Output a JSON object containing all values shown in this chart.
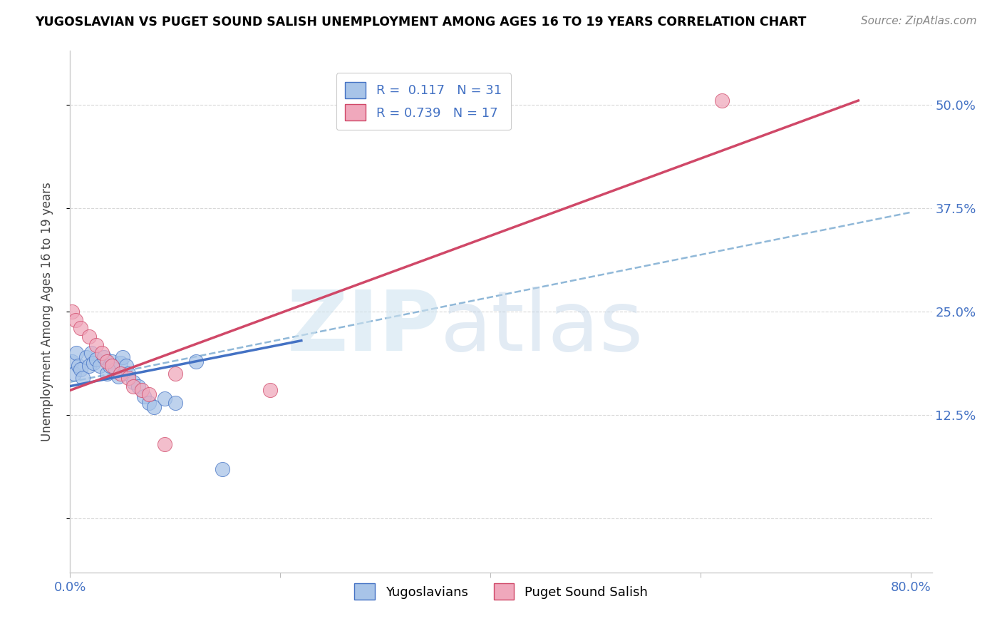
{
  "title": "YUGOSLAVIAN VS PUGET SOUND SALISH UNEMPLOYMENT AMONG AGES 16 TO 19 YEARS CORRELATION CHART",
  "source": "Source: ZipAtlas.com",
  "ylabel": "Unemployment Among Ages 16 to 19 years",
  "xlim": [
    0.0,
    0.82
  ],
  "ylim": [
    -0.065,
    0.565
  ],
  "ytick_vals": [
    0.0,
    0.125,
    0.25,
    0.375,
    0.5
  ],
  "ytick_labels_right": [
    "",
    "12.5%",
    "25.0%",
    "37.5%",
    "50.0%"
  ],
  "xtick_vals": [
    0.0,
    0.2,
    0.4,
    0.6,
    0.8
  ],
  "xtick_labels": [
    "0.0%",
    "",
    "",
    "",
    "80.0%"
  ],
  "blue_color": "#a8c4e8",
  "pink_color": "#f0a8bc",
  "blue_line_color": "#4472c4",
  "pink_line_color": "#d04868",
  "legend_blue_R": "0.117",
  "legend_blue_N": "31",
  "legend_pink_R": "0.739",
  "legend_pink_N": "17",
  "blue_scatter_x": [
    0.002,
    0.004,
    0.006,
    0.008,
    0.01,
    0.012,
    0.015,
    0.018,
    0.02,
    0.022,
    0.025,
    0.028,
    0.032,
    0.035,
    0.038,
    0.04,
    0.043,
    0.046,
    0.048,
    0.05,
    0.053,
    0.055,
    0.06,
    0.065,
    0.07,
    0.075,
    0.08,
    0.09,
    0.1,
    0.12,
    0.145
  ],
  "blue_scatter_y": [
    0.19,
    0.175,
    0.2,
    0.185,
    0.18,
    0.17,
    0.195,
    0.185,
    0.2,
    0.188,
    0.192,
    0.185,
    0.195,
    0.175,
    0.185,
    0.19,
    0.18,
    0.172,
    0.188,
    0.195,
    0.185,
    0.175,
    0.165,
    0.16,
    0.148,
    0.14,
    0.135,
    0.145,
    0.14,
    0.19,
    0.06
  ],
  "pink_scatter_x": [
    0.002,
    0.005,
    0.01,
    0.018,
    0.025,
    0.03,
    0.035,
    0.04,
    0.048,
    0.055,
    0.06,
    0.068,
    0.075,
    0.09,
    0.1,
    0.19,
    0.62
  ],
  "pink_scatter_y": [
    0.25,
    0.24,
    0.23,
    0.22,
    0.21,
    0.2,
    0.19,
    0.185,
    0.175,
    0.17,
    0.16,
    0.155,
    0.15,
    0.09,
    0.175,
    0.155,
    0.505
  ],
  "blue_trend_x": [
    0.0,
    0.22
  ],
  "blue_trend_y": [
    0.16,
    0.215
  ],
  "pink_trend_x": [
    0.0,
    0.75
  ],
  "pink_trend_y": [
    0.155,
    0.505
  ],
  "dashed_trend_x": [
    0.0,
    0.8
  ],
  "dashed_trend_y": [
    0.165,
    0.37
  ],
  "dashed_color": "#90b8d8",
  "watermark_zip_color": "#d0e4f0",
  "watermark_atlas_color": "#c0d4e8"
}
